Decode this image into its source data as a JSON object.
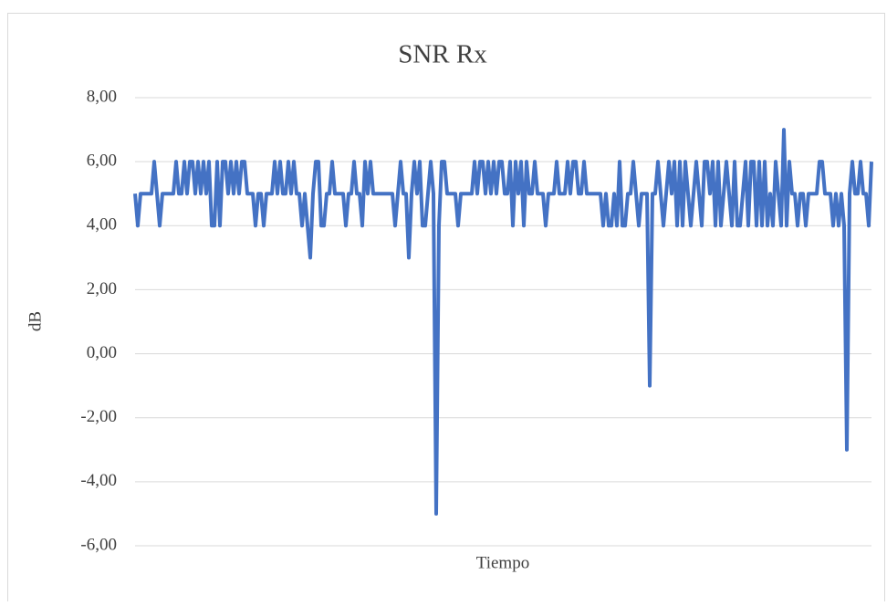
{
  "chart_data": {
    "type": "line",
    "title": "SNR Rx",
    "y_label": "dB",
    "x_label": "Tiempo",
    "color": "#4472c4",
    "grid": true,
    "ylim": [
      -6,
      8
    ],
    "yticks": [
      {
        "value": -6,
        "label": "-6,00"
      },
      {
        "value": -4,
        "label": "-4,00"
      },
      {
        "value": -2,
        "label": "-2,00"
      },
      {
        "value": 0,
        "label": "0,00"
      },
      {
        "value": 2,
        "label": "2,00"
      },
      {
        "value": 4,
        "label": "4,00"
      },
      {
        "value": 6,
        "label": "6,00"
      },
      {
        "value": 8,
        "label": "8,00"
      }
    ],
    "values": [
      5,
      4,
      5,
      5,
      5,
      5,
      5,
      6,
      5,
      4,
      5,
      5,
      5,
      5,
      5,
      6,
      5,
      5,
      6,
      5,
      6,
      6,
      5,
      6,
      5,
      6,
      5,
      6,
      4,
      4,
      6,
      4,
      6,
      6,
      5,
      6,
      5,
      6,
      5,
      6,
      6,
      5,
      5,
      5,
      4,
      5,
      5,
      4,
      5,
      5,
      5,
      6,
      5,
      6,
      5,
      5,
      6,
      5,
      6,
      5,
      5,
      4,
      5,
      4,
      3,
      5,
      6,
      6,
      4,
      4,
      5,
      5,
      6,
      5,
      5,
      5,
      5,
      4,
      5,
      5,
      6,
      5,
      5,
      4,
      6,
      5,
      6,
      5,
      5,
      5,
      5,
      5,
      5,
      5,
      5,
      4,
      5,
      6,
      5,
      5,
      3,
      5,
      6,
      5,
      6,
      4,
      4,
      5,
      6,
      5,
      -5,
      4,
      6,
      6,
      5,
      5,
      5,
      5,
      4,
      5,
      5,
      5,
      5,
      5,
      6,
      5,
      6,
      6,
      5,
      6,
      5,
      6,
      5,
      6,
      6,
      5,
      5,
      6,
      4,
      6,
      5,
      6,
      4,
      6,
      5,
      5,
      6,
      5,
      5,
      5,
      4,
      5,
      5,
      5,
      6,
      5,
      5,
      5,
      6,
      5,
      6,
      6,
      5,
      5,
      6,
      5,
      5,
      5,
      5,
      5,
      5,
      4,
      5,
      4,
      4,
      5,
      4,
      6,
      4,
      4,
      5,
      5,
      6,
      5,
      4,
      5,
      5,
      5,
      -1,
      5,
      5,
      6,
      5,
      4,
      5,
      6,
      5,
      6,
      4,
      6,
      4,
      6,
      5,
      4,
      5,
      6,
      5,
      4,
      6,
      6,
      5,
      6,
      4,
      6,
      4,
      5,
      6,
      5,
      4,
      6,
      4,
      4,
      5,
      6,
      4,
      6,
      6,
      4,
      6,
      4,
      6,
      4,
      5,
      4,
      6,
      5,
      4,
      7,
      4,
      6,
      5,
      5,
      4,
      5,
      5,
      4,
      5,
      5,
      5,
      5,
      6,
      6,
      5,
      5,
      5,
      4,
      5,
      4,
      5,
      4,
      -3,
      5,
      6,
      5,
      5,
      6,
      5,
      5,
      4,
      6
    ]
  }
}
